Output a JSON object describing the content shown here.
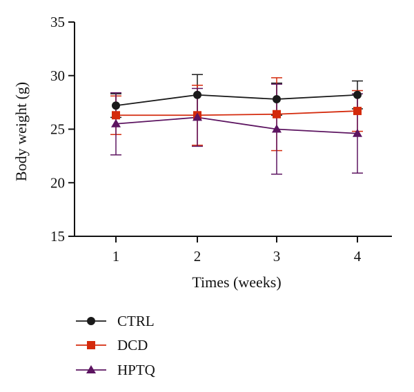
{
  "chart_data": {
    "type": "line",
    "title": "",
    "xlabel": "Times (weeks)",
    "ylabel": "Body weight (g)",
    "x": [
      1,
      2,
      3,
      4
    ],
    "xticks": [
      "1",
      "2",
      "3",
      "4"
    ],
    "ylim": [
      15,
      35
    ],
    "yticks": [
      "15",
      "20",
      "25",
      "30",
      "35"
    ],
    "grid": false,
    "legend_position": "bottom-left",
    "series": [
      {
        "name": "CTRL",
        "marker": "circle",
        "color": "#1a1a1a",
        "values": [
          27.2,
          28.2,
          27.8,
          28.2
        ],
        "error": [
          1.1,
          1.9,
          1.5,
          1.3
        ]
      },
      {
        "name": "DCD",
        "marker": "square",
        "color": "#d42a0c",
        "values": [
          26.3,
          26.3,
          26.4,
          26.7
        ],
        "error": [
          1.8,
          2.8,
          3.4,
          1.9
        ]
      },
      {
        "name": "HPTQ",
        "marker": "triangle",
        "color": "#5c1460",
        "values": [
          25.5,
          26.1,
          25.0,
          24.6
        ],
        "error": [
          2.9,
          2.7,
          4.2,
          3.7
        ]
      }
    ]
  }
}
